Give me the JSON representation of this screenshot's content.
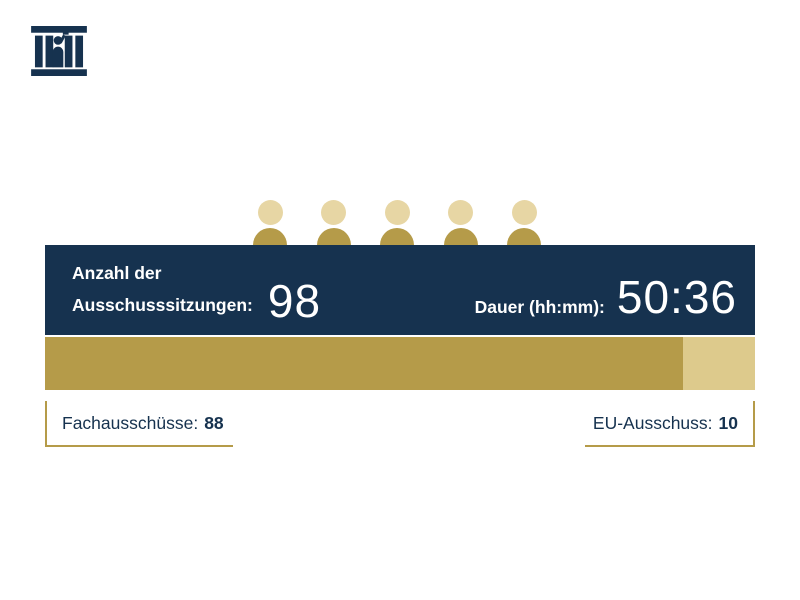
{
  "colors": {
    "navy": "#16324f",
    "gold_dark": "#b59b49",
    "gold_light": "#ddca8c",
    "gold_head": "#e7d6a4",
    "background": "#ffffff"
  },
  "header": {
    "logo_icon": "parliament-building-icon"
  },
  "people_row": {
    "count": 5,
    "icon": "person-icon"
  },
  "stats_bar": {
    "meetings_label_line1": "Anzahl der",
    "meetings_label_line2": "Ausschusssitzungen:",
    "meetings_value": "98",
    "duration_label": "Dauer (hh:mm):",
    "duration_value": "50:36"
  },
  "legend": {
    "left_label": "Fachausschüsse:",
    "left_value": "88",
    "right_label": "EU-Ausschuss:",
    "right_value": "10"
  },
  "chart_data": {
    "type": "bar",
    "orientation": "horizontal",
    "stacked": true,
    "title": "Anzahl der Ausschusssitzungen",
    "total_meetings": 98,
    "duration_label": "Dauer (hh:mm)",
    "duration_hhmm": "50:36",
    "categories": [
      "Fachausschüsse",
      "EU-Ausschuss"
    ],
    "values": [
      88,
      10
    ],
    "colors": [
      "#b59b49",
      "#ddca8c"
    ],
    "legend_position": "below",
    "grid": false
  }
}
